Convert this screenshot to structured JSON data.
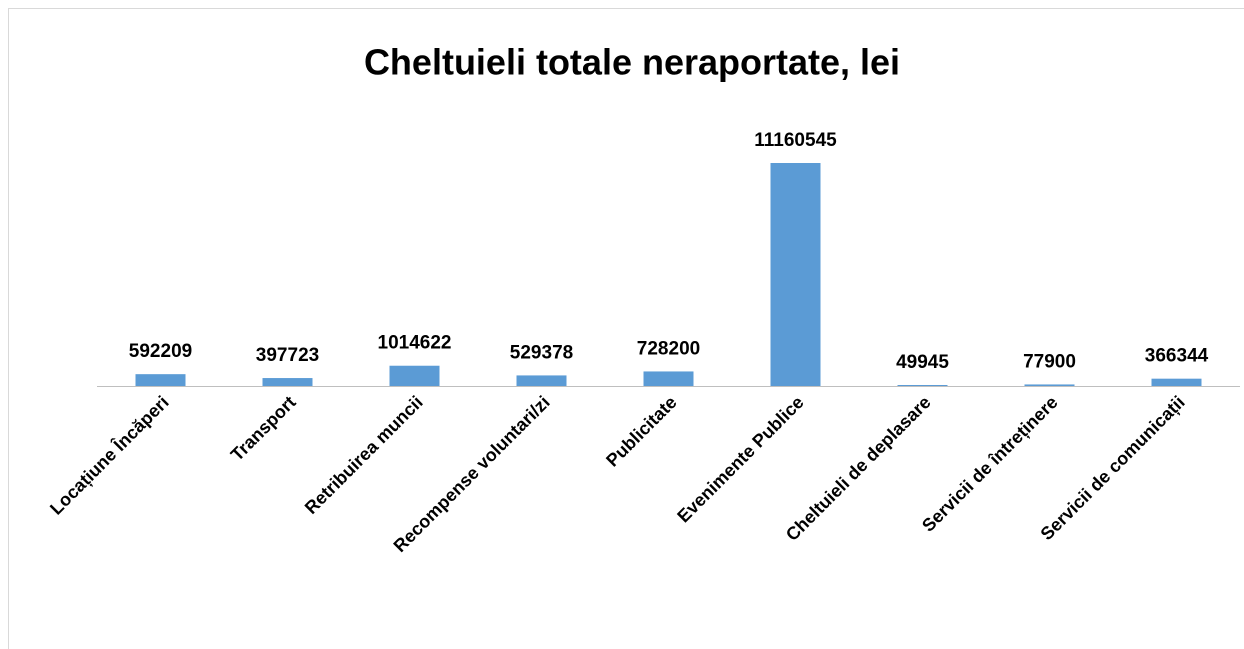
{
  "chart_data": {
    "type": "bar",
    "title": "Cheltuieli totale neraportate, lei",
    "categories": [
      "Locațiune Încăperi",
      "Transport",
      "Retribuirea muncii",
      "Recompense voluntari/zi",
      "Publicitate",
      "Evenimente Publice",
      "Cheltuieli de deplasare",
      "Servicii de întreținere",
      "Servicii de comunicații"
    ],
    "values": [
      592209,
      397723,
      1014622,
      529378,
      728200,
      11160545,
      49945,
      77900,
      366344
    ],
    "color": "#5b9bd5"
  }
}
